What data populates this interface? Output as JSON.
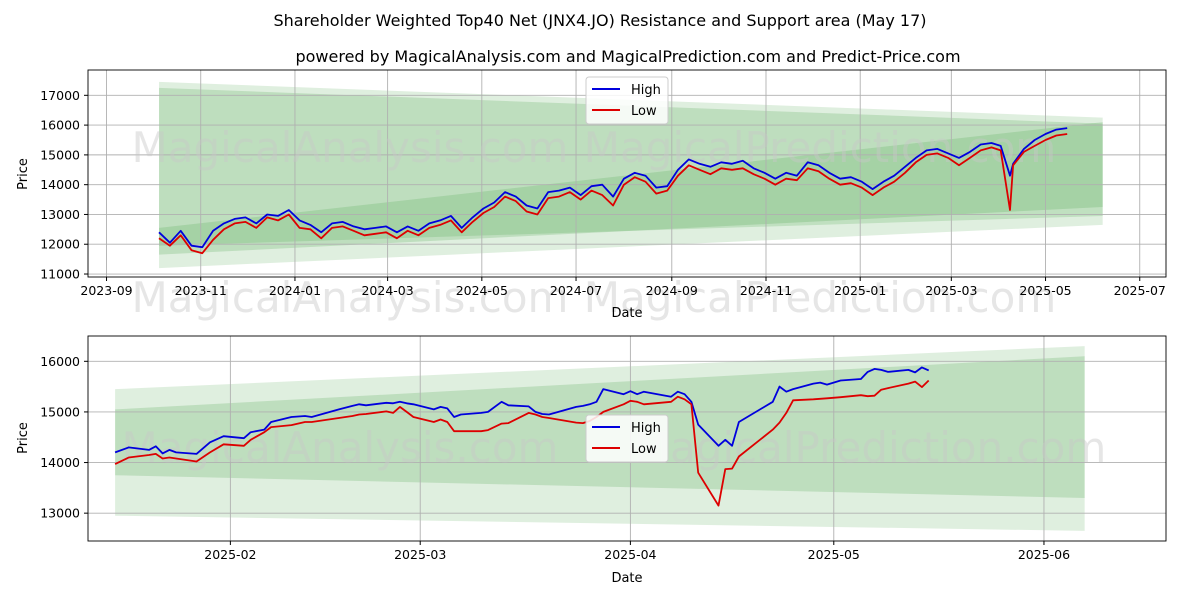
{
  "title": "Shareholder Weighted Top40 Net  (JNX4.JO) Resistance and Support area (May 17)",
  "subtitle": "powered by MagicalAnalysis.com and MagicalPrediction.com and Predict-Price.com",
  "watermarks": {
    "a": "MagicalAnalysis.com",
    "b": "MagicalPrediction.com"
  },
  "colors": {
    "high": "#0000dd",
    "low": "#dd0000",
    "band_light": "#dcefd8",
    "band_mid": "#b9ddb4"
  },
  "chart_data": [
    {
      "type": "line",
      "panel": "top",
      "xlabel": "Date",
      "ylabel": "Price",
      "xlim": [
        "2023-08-20",
        "2025-07-18"
      ],
      "ylim": [
        10900,
        17850
      ],
      "x_ticks": [
        "2023-09-01",
        "2023-11-01",
        "2024-01-01",
        "2024-03-01",
        "2024-05-01",
        "2024-07-01",
        "2024-09-01",
        "2024-11-01",
        "2025-01-01",
        "2025-03-01",
        "2025-05-01",
        "2025-07-01"
      ],
      "x_tick_labels": [
        "2023-09",
        "2023-11",
        "2024-01",
        "2024-03",
        "2024-05",
        "2024-07",
        "2024-09",
        "2024-11",
        "2025-01",
        "2025-03",
        "2025-05",
        "2025-07"
      ],
      "y_ticks": [
        11000,
        12000,
        13000,
        14000,
        15000,
        16000,
        17000
      ],
      "y_tick_labels": [
        "11000",
        "12000",
        "13000",
        "14000",
        "15000",
        "16000",
        "17000"
      ],
      "legend": {
        "position": "top-center",
        "entries": [
          "High",
          "Low"
        ]
      },
      "bands": [
        {
          "name": "resistance-support-wide",
          "x": [
            "2023-10-05",
            "2025-06-07"
          ],
          "upper": [
            17450,
            16250
          ],
          "lower": [
            11200,
            12650
          ]
        },
        {
          "name": "resistance-support-inner",
          "x": [
            "2023-10-05",
            "2025-06-07"
          ],
          "upper": [
            17250,
            16050
          ],
          "lower": [
            11650,
            13250
          ]
        },
        {
          "name": "trend-channel",
          "x": [
            "2023-10-05",
            "2025-06-07"
          ],
          "upper": [
            12550,
            16100
          ],
          "lower": [
            11950,
            12950
          ]
        }
      ],
      "series": [
        {
          "name": "High",
          "x": [
            "2023-10-05",
            "2023-10-12",
            "2023-10-19",
            "2023-10-26",
            "2023-11-02",
            "2023-11-09",
            "2023-11-16",
            "2023-11-23",
            "2023-11-30",
            "2023-12-07",
            "2023-12-14",
            "2023-12-21",
            "2023-12-28",
            "2024-01-04",
            "2024-01-11",
            "2024-01-18",
            "2024-01-25",
            "2024-02-01",
            "2024-02-08",
            "2024-02-15",
            "2024-02-22",
            "2024-02-29",
            "2024-03-07",
            "2024-03-14",
            "2024-03-21",
            "2024-03-28",
            "2024-04-04",
            "2024-04-11",
            "2024-04-18",
            "2024-04-25",
            "2024-05-02",
            "2024-05-09",
            "2024-05-16",
            "2024-05-23",
            "2024-05-30",
            "2024-06-06",
            "2024-06-13",
            "2024-06-20",
            "2024-06-27",
            "2024-07-04",
            "2024-07-11",
            "2024-07-18",
            "2024-07-25",
            "2024-08-01",
            "2024-08-08",
            "2024-08-15",
            "2024-08-22",
            "2024-08-29",
            "2024-09-05",
            "2024-09-12",
            "2024-09-19",
            "2024-09-26",
            "2024-10-03",
            "2024-10-10",
            "2024-10-17",
            "2024-10-24",
            "2024-10-31",
            "2024-11-07",
            "2024-11-14",
            "2024-11-21",
            "2024-11-28",
            "2024-12-05",
            "2024-12-12",
            "2024-12-19",
            "2024-12-26",
            "2025-01-02",
            "2025-01-09",
            "2025-01-16",
            "2025-01-23",
            "2025-01-30",
            "2025-02-06",
            "2025-02-13",
            "2025-02-20",
            "2025-02-27",
            "2025-03-06",
            "2025-03-13",
            "2025-03-20",
            "2025-03-27",
            "2025-04-02",
            "2025-04-08",
            "2025-04-10",
            "2025-04-17",
            "2025-04-24",
            "2025-05-01",
            "2025-05-08",
            "2025-05-15"
          ],
          "values": [
            12400,
            12050,
            12450,
            11950,
            11900,
            12450,
            12700,
            12850,
            12900,
            12700,
            13000,
            12950,
            13150,
            12800,
            12650,
            12400,
            12700,
            12750,
            12600,
            12500,
            12550,
            12600,
            12400,
            12600,
            12450,
            12700,
            12800,
            12950,
            12550,
            12900,
            13200,
            13400,
            13750,
            13600,
            13300,
            13200,
            13750,
            13800,
            13900,
            13650,
            13950,
            14000,
            13600,
            14200,
            14400,
            14300,
            13900,
            13950,
            14500,
            14850,
            14700,
            14600,
            14750,
            14700,
            14800,
            14550,
            14400,
            14200,
            14400,
            14300,
            14750,
            14650,
            14400,
            14200,
            14250,
            14100,
            13850,
            14100,
            14300,
            14600,
            14900,
            15150,
            15200,
            15050,
            14900,
            15100,
            15350,
            15400,
            15300,
            14300,
            14700,
            15200,
            15500,
            15700,
            15850,
            15900
          ]
        },
        {
          "name": "Low",
          "x": [
            "2023-10-05",
            "2023-10-12",
            "2023-10-19",
            "2023-10-26",
            "2023-11-02",
            "2023-11-09",
            "2023-11-16",
            "2023-11-23",
            "2023-11-30",
            "2023-12-07",
            "2023-12-14",
            "2023-12-21",
            "2023-12-28",
            "2024-01-04",
            "2024-01-11",
            "2024-01-18",
            "2024-01-25",
            "2024-02-01",
            "2024-02-08",
            "2024-02-15",
            "2024-02-22",
            "2024-02-29",
            "2024-03-07",
            "2024-03-14",
            "2024-03-21",
            "2024-03-28",
            "2024-04-04",
            "2024-04-11",
            "2024-04-18",
            "2024-04-25",
            "2024-05-02",
            "2024-05-09",
            "2024-05-16",
            "2024-05-23",
            "2024-05-30",
            "2024-06-06",
            "2024-06-13",
            "2024-06-20",
            "2024-06-27",
            "2024-07-04",
            "2024-07-11",
            "2024-07-18",
            "2024-07-25",
            "2024-08-01",
            "2024-08-08",
            "2024-08-15",
            "2024-08-22",
            "2024-08-29",
            "2024-09-05",
            "2024-09-12",
            "2024-09-19",
            "2024-09-26",
            "2024-10-03",
            "2024-10-10",
            "2024-10-17",
            "2024-10-24",
            "2024-10-31",
            "2024-11-07",
            "2024-11-14",
            "2024-11-21",
            "2024-11-28",
            "2024-12-05",
            "2024-12-12",
            "2024-12-19",
            "2024-12-26",
            "2025-01-02",
            "2025-01-09",
            "2025-01-16",
            "2025-01-23",
            "2025-01-30",
            "2025-02-06",
            "2025-02-13",
            "2025-02-20",
            "2025-02-27",
            "2025-03-06",
            "2025-03-13",
            "2025-03-20",
            "2025-03-27",
            "2025-04-02",
            "2025-04-08",
            "2025-04-10",
            "2025-04-17",
            "2025-04-24",
            "2025-05-01",
            "2025-05-08",
            "2025-05-15"
          ],
          "values": [
            12200,
            11950,
            12300,
            11800,
            11700,
            12150,
            12500,
            12700,
            12750,
            12550,
            12900,
            12800,
            13000,
            12550,
            12500,
            12200,
            12550,
            12600,
            12450,
            12300,
            12350,
            12400,
            12200,
            12450,
            12300,
            12550,
            12650,
            12800,
            12400,
            12750,
            13050,
            13250,
            13600,
            13450,
            13100,
            13000,
            13550,
            13600,
            13750,
            13500,
            13800,
            13650,
            13300,
            14000,
            14250,
            14100,
            13700,
            13800,
            14300,
            14650,
            14500,
            14350,
            14550,
            14500,
            14550,
            14350,
            14200,
            14000,
            14200,
            14150,
            14550,
            14450,
            14200,
            14000,
            14050,
            13900,
            13650,
            13900,
            14100,
            14400,
            14750,
            15000,
            15050,
            14900,
            14650,
            14900,
            15150,
            15250,
            15150,
            13150,
            14650,
            15100,
            15300,
            15500,
            15650,
            15700
          ]
        }
      ]
    },
    {
      "type": "line",
      "panel": "bottom",
      "xlabel": "Date",
      "ylabel": "Price",
      "xlim": [
        "2025-01-11",
        "2025-06-19"
      ],
      "ylim": [
        12450,
        16500
      ],
      "x_ticks": [
        "2025-02-01",
        "2025-03-01",
        "2025-04-01",
        "2025-05-01",
        "2025-06-01"
      ],
      "x_tick_labels": [
        "2025-02",
        "2025-03",
        "2025-04",
        "2025-05",
        "2025-06"
      ],
      "y_ticks": [
        13000,
        14000,
        15000,
        16000
      ],
      "y_tick_labels": [
        "13000",
        "14000",
        "15000",
        "16000"
      ],
      "legend": {
        "position": "center",
        "entries": [
          "High",
          "Low"
        ]
      },
      "bands": [
        {
          "name": "resistance-support-wide",
          "x": [
            "2025-01-15",
            "2025-06-07"
          ],
          "upper": [
            15450,
            16300
          ],
          "lower": [
            12950,
            12650
          ]
        },
        {
          "name": "resistance-support-inner",
          "x": [
            "2025-01-15",
            "2025-06-07"
          ],
          "upper": [
            15050,
            16100
          ],
          "lower": [
            13750,
            13300
          ]
        }
      ],
      "series": [
        {
          "name": "High",
          "x": [
            "2025-01-15",
            "2025-01-17",
            "2025-01-20",
            "2025-01-21",
            "2025-01-22",
            "2025-01-23",
            "2025-01-24",
            "2025-01-27",
            "2025-01-29",
            "2025-01-31",
            "2025-02-03",
            "2025-02-04",
            "2025-02-06",
            "2025-02-07",
            "2025-02-10",
            "2025-02-12",
            "2025-02-13",
            "2025-02-17",
            "2025-02-19",
            "2025-02-20",
            "2025-02-21",
            "2025-02-24",
            "2025-02-25",
            "2025-02-26",
            "2025-02-27",
            "2025-02-28",
            "2025-03-03",
            "2025-03-04",
            "2025-03-05",
            "2025-03-06",
            "2025-03-07",
            "2025-03-10",
            "2025-03-11",
            "2025-03-13",
            "2025-03-14",
            "2025-03-17",
            "2025-03-18",
            "2025-03-19",
            "2025-03-20",
            "2025-03-24",
            "2025-03-25",
            "2025-03-26",
            "2025-03-27",
            "2025-03-28",
            "2025-03-31",
            "2025-04-01",
            "2025-04-02",
            "2025-04-03",
            "2025-04-07",
            "2025-04-08",
            "2025-04-09",
            "2025-04-10",
            "2025-04-11",
            "2025-04-14",
            "2025-04-15",
            "2025-04-16",
            "2025-04-17",
            "2025-04-22",
            "2025-04-23",
            "2025-04-24",
            "2025-04-25",
            "2025-04-28",
            "2025-04-29",
            "2025-04-30",
            "2025-05-02",
            "2025-05-05",
            "2025-05-06",
            "2025-05-07",
            "2025-05-08",
            "2025-05-09",
            "2025-05-12",
            "2025-05-13",
            "2025-05-14",
            "2025-05-15"
          ],
          "values": [
            14200,
            14300,
            14250,
            14320,
            14180,
            14250,
            14200,
            14170,
            14400,
            14520,
            14480,
            14600,
            14650,
            14800,
            14900,
            14920,
            14900,
            15050,
            15120,
            15150,
            15130,
            15180,
            15170,
            15200,
            15170,
            15150,
            15050,
            15100,
            15070,
            14900,
            14950,
            14980,
            15000,
            15200,
            15130,
            15110,
            15000,
            14960,
            14950,
            15100,
            15120,
            15150,
            15200,
            15450,
            15350,
            15410,
            15350,
            15400,
            15300,
            15400,
            15350,
            15200,
            14750,
            14330,
            14450,
            14330,
            14800,
            15200,
            15500,
            15400,
            15450,
            15560,
            15580,
            15540,
            15620,
            15650,
            15790,
            15850,
            15830,
            15790,
            15830,
            15780,
            15880,
            15820
          ]
        },
        {
          "name": "Low",
          "x": [
            "2025-01-15",
            "2025-01-17",
            "2025-01-20",
            "2025-01-21",
            "2025-01-22",
            "2025-01-23",
            "2025-01-24",
            "2025-01-27",
            "2025-01-29",
            "2025-01-31",
            "2025-02-03",
            "2025-02-04",
            "2025-02-06",
            "2025-02-07",
            "2025-02-10",
            "2025-02-12",
            "2025-02-13",
            "2025-02-17",
            "2025-02-19",
            "2025-02-20",
            "2025-02-21",
            "2025-02-24",
            "2025-02-25",
            "2025-02-26",
            "2025-02-27",
            "2025-02-28",
            "2025-03-03",
            "2025-03-04",
            "2025-03-05",
            "2025-03-06",
            "2025-03-07",
            "2025-03-10",
            "2025-03-11",
            "2025-03-13",
            "2025-03-14",
            "2025-03-17",
            "2025-03-18",
            "2025-03-19",
            "2025-03-20",
            "2025-03-24",
            "2025-03-25",
            "2025-03-26",
            "2025-03-27",
            "2025-03-28",
            "2025-03-31",
            "2025-04-01",
            "2025-04-02",
            "2025-04-03",
            "2025-04-07",
            "2025-04-08",
            "2025-04-09",
            "2025-04-10",
            "2025-04-11",
            "2025-04-14",
            "2025-04-15",
            "2025-04-16",
            "2025-04-17",
            "2025-04-22",
            "2025-04-23",
            "2025-04-24",
            "2025-04-25",
            "2025-04-28",
            "2025-04-29",
            "2025-04-30",
            "2025-05-02",
            "2025-05-05",
            "2025-05-06",
            "2025-05-07",
            "2025-05-08",
            "2025-05-09",
            "2025-05-12",
            "2025-05-13",
            "2025-05-14",
            "2025-05-15"
          ],
          "values": [
            13970,
            14100,
            14150,
            14170,
            14080,
            14100,
            14080,
            14020,
            14200,
            14360,
            14330,
            14450,
            14600,
            14700,
            14740,
            14800,
            14800,
            14880,
            14920,
            14950,
            14960,
            15010,
            14980,
            15100,
            15000,
            14900,
            14800,
            14850,
            14800,
            14620,
            14620,
            14620,
            14640,
            14770,
            14780,
            14980,
            14950,
            14900,
            14880,
            14790,
            14780,
            14820,
            14900,
            15000,
            15150,
            15220,
            15200,
            15150,
            15200,
            15300,
            15250,
            15150,
            13800,
            13150,
            13870,
            13880,
            14120,
            14650,
            14790,
            14980,
            15230,
            15250,
            15260,
            15270,
            15290,
            15330,
            15310,
            15320,
            15440,
            15470,
            15560,
            15600,
            15490,
            15620
          ]
        }
      ]
    }
  ]
}
